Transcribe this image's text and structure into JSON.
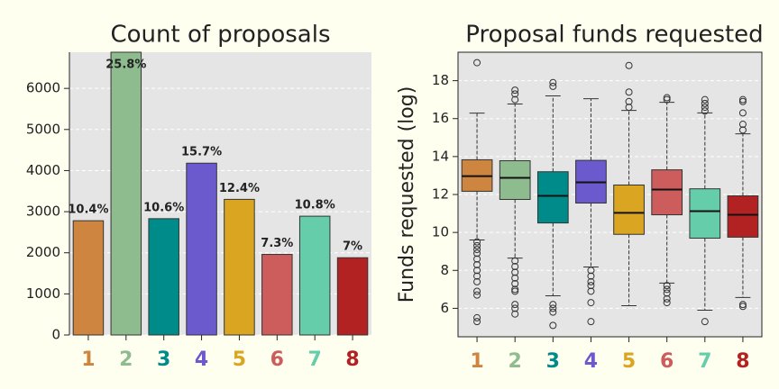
{
  "chart_data": [
    {
      "type": "bar",
      "title": "Count of proposals",
      "categories": [
        "1",
        "2",
        "3",
        "4",
        "5",
        "6",
        "7",
        "8"
      ],
      "values": [
        2780,
        6900,
        2830,
        4180,
        3300,
        1960,
        2890,
        1880
      ],
      "annotations": [
        "10.4%",
        "25.8%",
        "10.6%",
        "15.7%",
        "12.4%",
        "7.3%",
        "10.8%",
        "7%"
      ],
      "colors": [
        "#cd853f",
        "#8fbc8f",
        "#008b8b",
        "#6a5acd",
        "#daa520",
        "#cd5c5c",
        "#66cdaa",
        "#b22222"
      ],
      "ylim": [
        0,
        6880
      ],
      "yticks": [
        0,
        1000,
        2000,
        3000,
        4000,
        5000,
        6000
      ],
      "grid": true
    },
    {
      "type": "box",
      "title": "Proposal funds requested",
      "ylabel": "Funds requested (log)",
      "categories": [
        "1",
        "2",
        "3",
        "4",
        "5",
        "6",
        "7",
        "8"
      ],
      "colors": [
        "#cd853f",
        "#8fbc8f",
        "#008b8b",
        "#6a5acd",
        "#daa520",
        "#cd5c5c",
        "#66cdaa",
        "#b22222"
      ],
      "boxes": [
        {
          "whislo": 9.6,
          "q1": 12.17,
          "med": 12.97,
          "q3": 13.83,
          "whishi": 16.29,
          "fliers": [
            9.5,
            9.3,
            9.1,
            8.9,
            8.6,
            8.3,
            8.0,
            7.7,
            7.4,
            6.9,
            6.7,
            5.5,
            5.3,
            18.95
          ]
        },
        {
          "whislo": 8.65,
          "q1": 11.74,
          "med": 12.88,
          "q3": 13.78,
          "whishi": 16.77,
          "fliers": [
            17.0,
            17.3,
            17.5,
            8.5,
            8.2,
            7.9,
            7.6,
            7.3,
            7.0,
            6.9,
            6.2,
            6.0,
            5.7
          ]
        },
        {
          "whislo": 6.66,
          "q1": 10.5,
          "med": 11.93,
          "q3": 13.2,
          "whishi": 17.2,
          "fliers": [
            17.7,
            17.9,
            6.2,
            6.0,
            5.8,
            5.1
          ]
        },
        {
          "whislo": 8.18,
          "q1": 11.55,
          "med": 12.64,
          "q3": 13.8,
          "whishi": 17.05,
          "fliers": [
            8.0,
            7.7,
            7.4,
            7.2,
            6.9,
            6.3,
            5.3
          ]
        },
        {
          "whislo": 6.14,
          "q1": 9.9,
          "med": 11.03,
          "q3": 12.5,
          "whishi": 16.43,
          "fliers": [
            16.6,
            16.9,
            17.4,
            18.8
          ]
        },
        {
          "whislo": 7.33,
          "q1": 10.93,
          "med": 12.26,
          "q3": 13.3,
          "whishi": 16.86,
          "fliers": [
            17.0,
            17.1,
            7.2,
            7.0,
            6.8,
            6.5,
            6.3
          ]
        },
        {
          "whislo": 5.9,
          "q1": 9.7,
          "med": 11.12,
          "q3": 12.3,
          "whishi": 16.3,
          "fliers": [
            16.4,
            16.6,
            16.8,
            17.0,
            5.3
          ]
        },
        {
          "whislo": 6.57,
          "q1": 9.75,
          "med": 10.93,
          "q3": 11.93,
          "whishi": 15.2,
          "fliers": [
            15.4,
            15.7,
            16.3,
            16.9,
            17.0,
            6.2,
            6.1
          ]
        }
      ],
      "ylim": [
        4.5,
        19.5
      ],
      "yticks": [
        6,
        8,
        10,
        12,
        14,
        16,
        18
      ],
      "grid": true
    }
  ]
}
